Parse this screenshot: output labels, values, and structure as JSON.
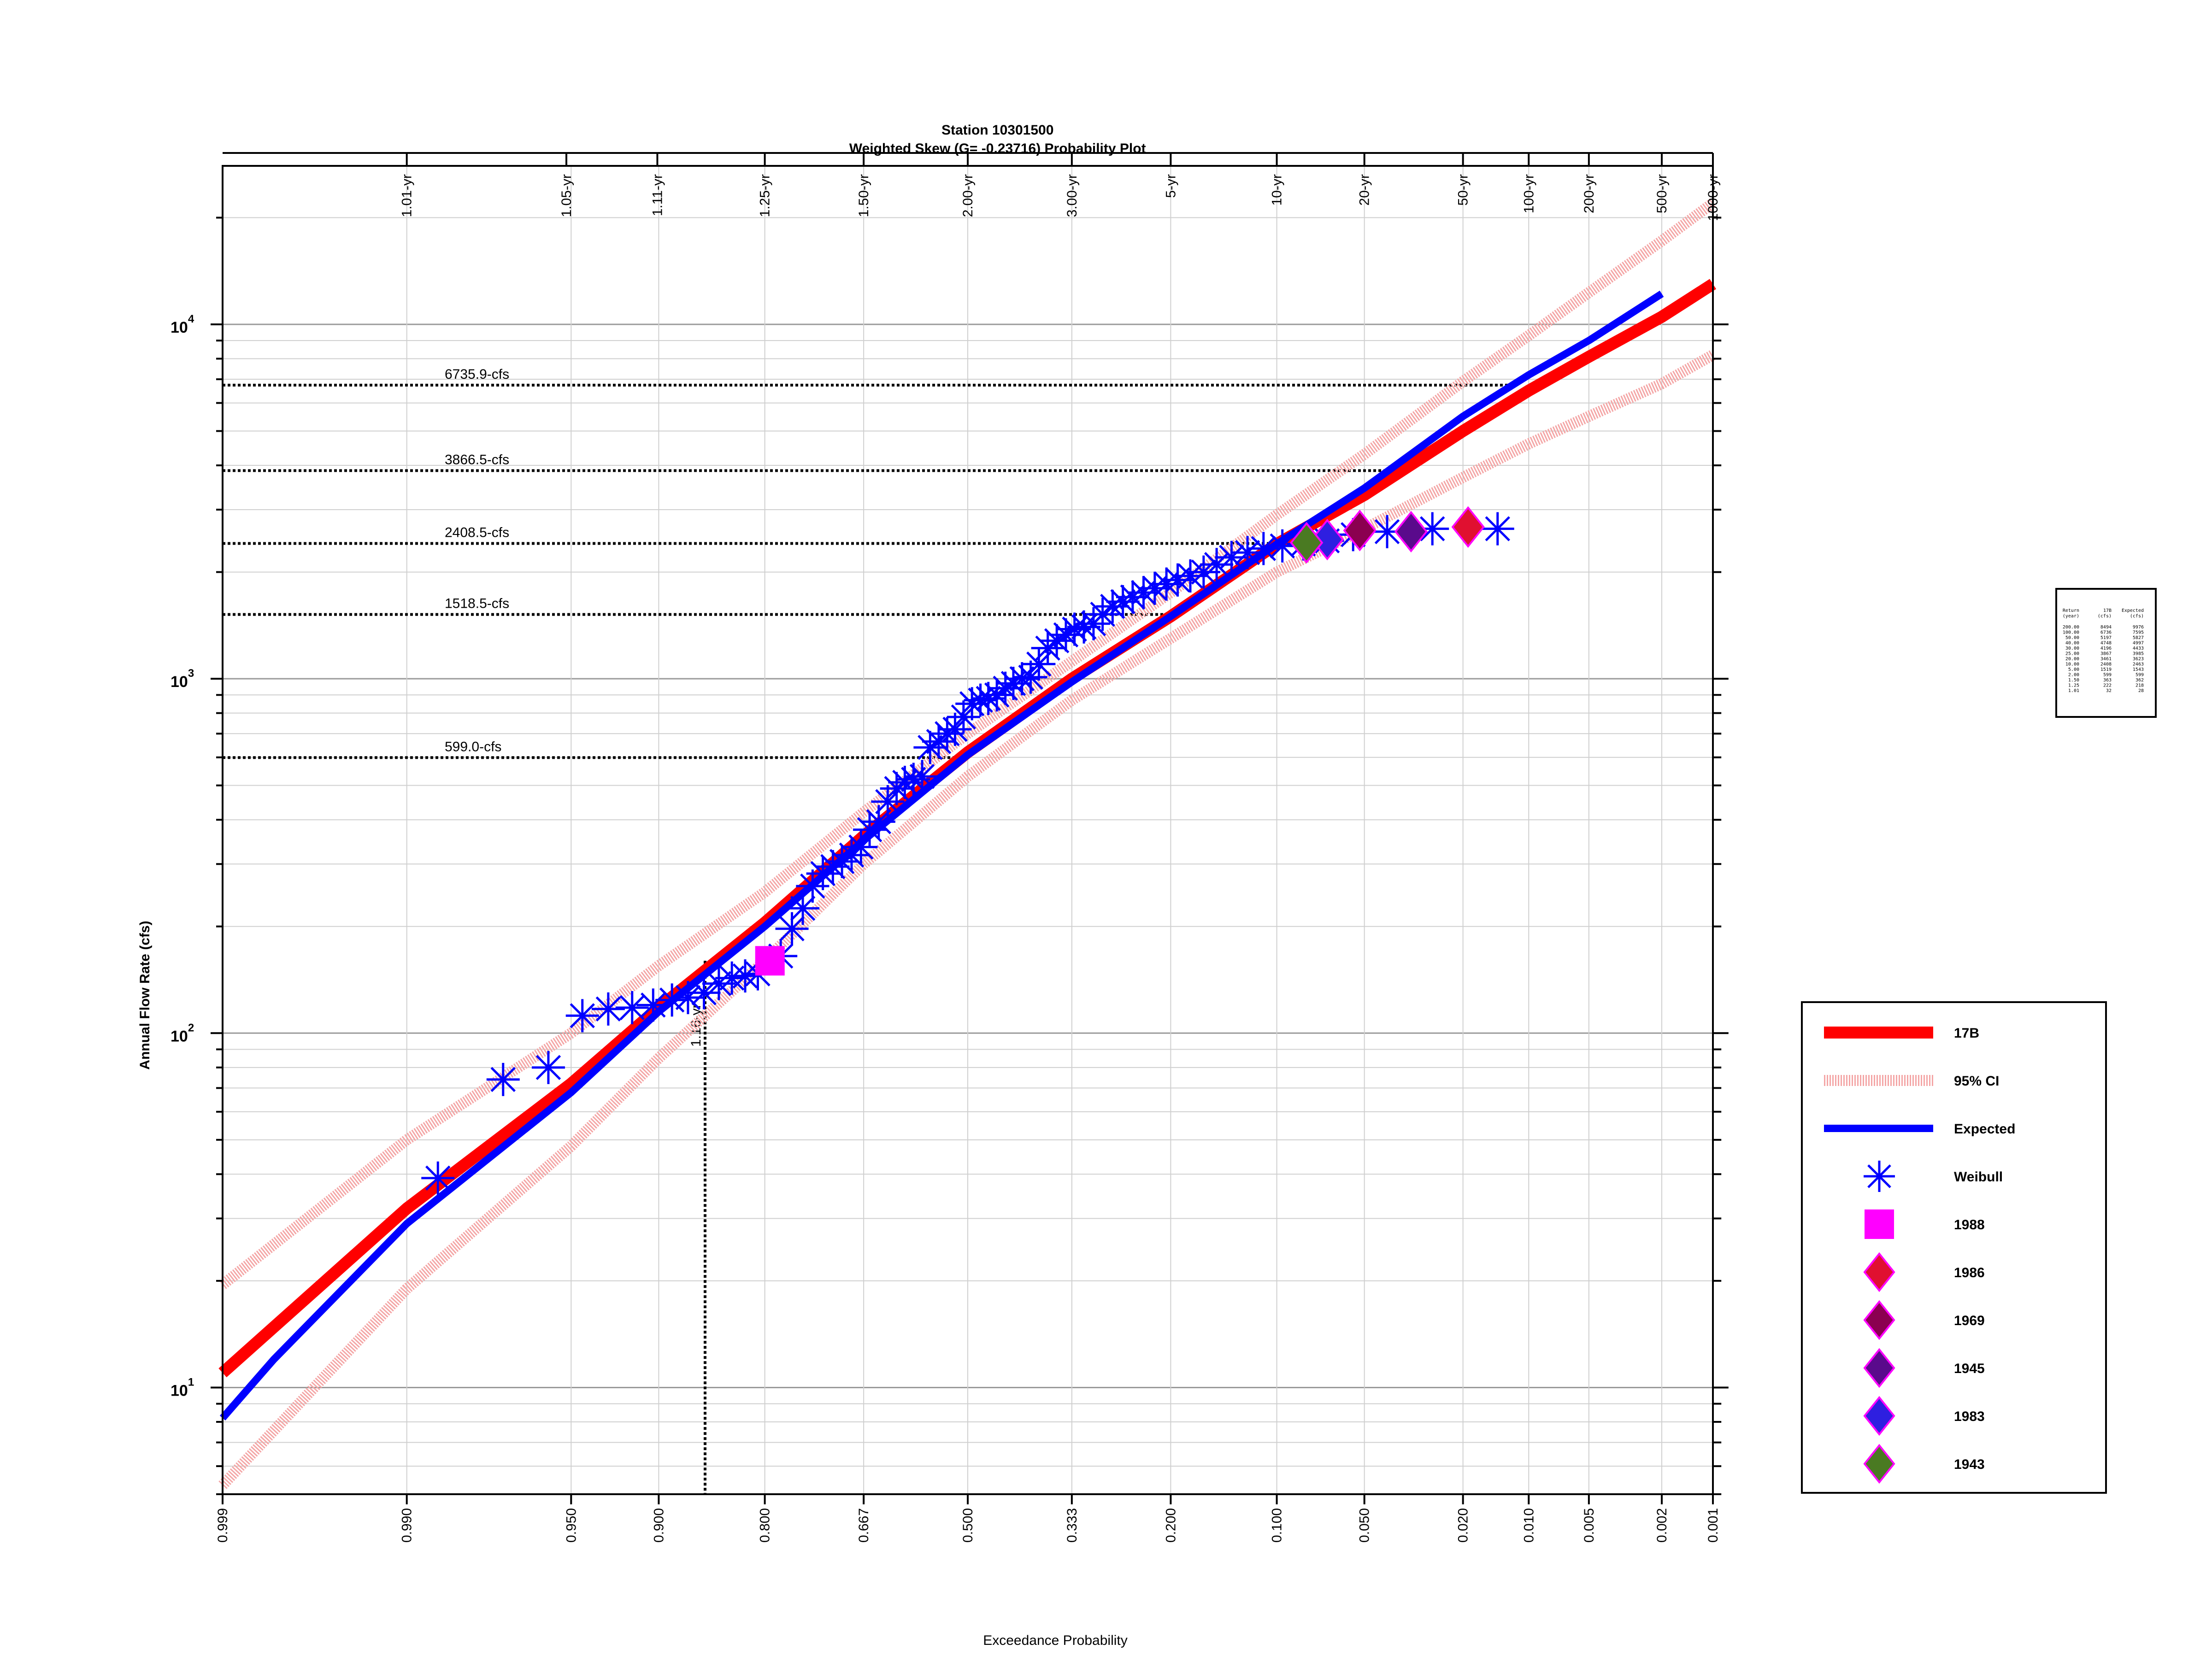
{
  "chart_data": {
    "type": "scatter",
    "title": "Station 10301500",
    "subtitle": "Weighted Skew (G= -0.23716) Probability Plot",
    "xlabel": "Exceedance Probability",
    "ylabel": "Annual Flow Rate (cfs)",
    "x_scale": "normal-probability",
    "y_scale": "log",
    "xlim": [
      0.999,
      0.001
    ],
    "ylim": [
      5,
      28000
    ],
    "grid": true,
    "legend_position": "right",
    "bottom_ticks": [
      {
        "p": 0.999,
        "label": "0.999"
      },
      {
        "p": 0.99,
        "label": "0.990"
      },
      {
        "p": 0.95,
        "label": "0.950"
      },
      {
        "p": 0.9,
        "label": "0.900"
      },
      {
        "p": 0.8,
        "label": "0.800"
      },
      {
        "p": 0.667,
        "label": "0.667"
      },
      {
        "p": 0.5,
        "label": "0.500"
      },
      {
        "p": 0.333,
        "label": "0.333"
      },
      {
        "p": 0.2,
        "label": "0.200"
      },
      {
        "p": 0.1,
        "label": "0.100"
      },
      {
        "p": 0.05,
        "label": "0.050"
      },
      {
        "p": 0.02,
        "label": "0.020"
      },
      {
        "p": 0.01,
        "label": "0.010"
      },
      {
        "p": 0.005,
        "label": "0.005"
      },
      {
        "p": 0.002,
        "label": "0.002"
      },
      {
        "p": 0.001,
        "label": "0.001"
      }
    ],
    "top_ticks": [
      {
        "p": 0.99,
        "label": "1.01-yr"
      },
      {
        "p": 0.952,
        "label": "1.05-yr"
      },
      {
        "p": 0.901,
        "label": "1.11-yr"
      },
      {
        "p": 0.8,
        "label": "1.25-yr"
      },
      {
        "p": 0.667,
        "label": "1.50-yr"
      },
      {
        "p": 0.5,
        "label": "2.00-yr"
      },
      {
        "p": 0.333,
        "label": "3.00-yr"
      },
      {
        "p": 0.2,
        "label": "5-yr"
      },
      {
        "p": 0.1,
        "label": "10-yr"
      },
      {
        "p": 0.05,
        "label": "20-yr"
      },
      {
        "p": 0.02,
        "label": "50-yr"
      },
      {
        "p": 0.01,
        "label": "100-yr"
      },
      {
        "p": 0.005,
        "label": "200-yr"
      },
      {
        "p": 0.002,
        "label": "500-yr"
      },
      {
        "p": 0.001,
        "label": "1000-yr"
      }
    ],
    "y_major_ticks": [
      {
        "value": 10,
        "base": "10",
        "exp": "1"
      },
      {
        "value": 100,
        "base": "10",
        "exp": "2"
      },
      {
        "value": 1000,
        "base": "10",
        "exp": "3"
      },
      {
        "value": 10000,
        "base": "10",
        "exp": "4"
      }
    ],
    "horizontal_refs": [
      {
        "value": 6735.9,
        "label": "6735.9-cfs",
        "p_end": 0.012
      },
      {
        "value": 3866.5,
        "label": "3866.5-cfs",
        "p_end": 0.04
      },
      {
        "value": 2408.5,
        "label": "2408.5-cfs",
        "p_end": 0.1
      },
      {
        "value": 1518.5,
        "label": "1518.5-cfs",
        "p_end": 0.2
      },
      {
        "value": 599.0,
        "label": "599.0-cfs",
        "p_end": 0.5
      }
    ],
    "vertical_ref": {
      "p": 0.862,
      "label": "1.16-yr",
      "y_top": 160
    },
    "series": [
      {
        "name": "17B",
        "color": "#ff0000",
        "style": "line",
        "points": [
          [
            0.999,
            11
          ],
          [
            0.99,
            32
          ],
          [
            0.95,
            72
          ],
          [
            0.9,
            118
          ],
          [
            0.8,
            205
          ],
          [
            0.667,
            360
          ],
          [
            0.5,
            620
          ],
          [
            0.333,
            1000
          ],
          [
            0.2,
            1500
          ],
          [
            0.1,
            2400
          ],
          [
            0.05,
            3300
          ],
          [
            0.02,
            5000
          ],
          [
            0.01,
            6500
          ],
          [
            0.005,
            8100
          ],
          [
            0.002,
            10500
          ],
          [
            0.001,
            13000
          ]
        ]
      },
      {
        "name": "95% CI",
        "color": "#f4a6a6",
        "style": "band",
        "upper": [
          [
            0.999,
            19.5
          ],
          [
            0.99,
            50
          ],
          [
            0.95,
            100
          ],
          [
            0.9,
            155
          ],
          [
            0.8,
            250
          ],
          [
            0.667,
            420
          ],
          [
            0.5,
            700
          ],
          [
            0.333,
            1120
          ],
          [
            0.2,
            1750
          ],
          [
            0.1,
            2900
          ],
          [
            0.05,
            4300
          ],
          [
            0.02,
            6900
          ],
          [
            0.01,
            9300
          ],
          [
            0.005,
            12300
          ],
          [
            0.002,
            17200
          ],
          [
            0.001,
            22000
          ]
        ],
        "lower": [
          [
            0.999,
            5.3
          ],
          [
            0.99,
            19
          ],
          [
            0.95,
            48
          ],
          [
            0.9,
            85
          ],
          [
            0.8,
            160
          ],
          [
            0.667,
            300
          ],
          [
            0.5,
            530
          ],
          [
            0.333,
            870
          ],
          [
            0.2,
            1300
          ],
          [
            0.1,
            2000
          ],
          [
            0.05,
            2650
          ],
          [
            0.02,
            3700
          ],
          [
            0.01,
            4600
          ],
          [
            0.005,
            5500
          ],
          [
            0.002,
            6800
          ],
          [
            0.001,
            8200
          ]
        ]
      },
      {
        "name": "Expected",
        "color": "#0000ff",
        "style": "line",
        "points": [
          [
            0.999,
            8.2
          ],
          [
            0.998,
            12
          ],
          [
            0.99,
            29
          ],
          [
            0.95,
            68
          ],
          [
            0.9,
            115
          ],
          [
            0.8,
            200
          ],
          [
            0.667,
            350
          ],
          [
            0.5,
            610
          ],
          [
            0.333,
            980
          ],
          [
            0.2,
            1500
          ],
          [
            0.1,
            2400
          ],
          [
            0.05,
            3450
          ],
          [
            0.02,
            5500
          ],
          [
            0.01,
            7200
          ],
          [
            0.005,
            9000
          ],
          [
            0.002,
            12200
          ]
        ]
      },
      {
        "name": "Weibull",
        "color": "#0000ff",
        "style": "asterisk",
        "points": [
          [
            0.986,
            39
          ],
          [
            0.973,
            74
          ],
          [
            0.959,
            80
          ],
          [
            0.945,
            112
          ],
          [
            0.932,
            117
          ],
          [
            0.918,
            118
          ],
          [
            0.904,
            120
          ],
          [
            0.89,
            124
          ],
          [
            0.877,
            126
          ],
          [
            0.863,
            130
          ],
          [
            0.849,
            138
          ],
          [
            0.836,
            143
          ],
          [
            0.822,
            145
          ],
          [
            0.808,
            147
          ],
          [
            0.781,
            165
          ],
          [
            0.767,
            197
          ],
          [
            0.753,
            225
          ],
          [
            0.74,
            260
          ],
          [
            0.726,
            282
          ],
          [
            0.712,
            295
          ],
          [
            0.699,
            305
          ],
          [
            0.685,
            318
          ],
          [
            0.671,
            335
          ],
          [
            0.658,
            375
          ],
          [
            0.644,
            395
          ],
          [
            0.63,
            450
          ],
          [
            0.616,
            490
          ],
          [
            0.603,
            510
          ],
          [
            0.589,
            520
          ],
          [
            0.575,
            530
          ],
          [
            0.562,
            640
          ],
          [
            0.548,
            665
          ],
          [
            0.534,
            700
          ],
          [
            0.521,
            720
          ],
          [
            0.507,
            780
          ],
          [
            0.493,
            850
          ],
          [
            0.479,
            870
          ],
          [
            0.466,
            880
          ],
          [
            0.452,
            900
          ],
          [
            0.438,
            940
          ],
          [
            0.425,
            970
          ],
          [
            0.411,
            1000
          ],
          [
            0.397,
            1010
          ],
          [
            0.384,
            1100
          ],
          [
            0.37,
            1220
          ],
          [
            0.356,
            1280
          ],
          [
            0.342,
            1330
          ],
          [
            0.329,
            1380
          ],
          [
            0.315,
            1400
          ],
          [
            0.301,
            1430
          ],
          [
            0.288,
            1520
          ],
          [
            0.274,
            1600
          ],
          [
            0.26,
            1650
          ],
          [
            0.247,
            1700
          ],
          [
            0.233,
            1750
          ],
          [
            0.219,
            1800
          ],
          [
            0.205,
            1850
          ],
          [
            0.192,
            1900
          ],
          [
            0.178,
            1950
          ],
          [
            0.164,
            2000
          ],
          [
            0.151,
            2100
          ],
          [
            0.137,
            2200
          ],
          [
            0.123,
            2270
          ],
          [
            0.11,
            2330
          ],
          [
            0.096,
            2370
          ],
          [
            0.082,
            2400
          ],
          [
            0.068,
            2450
          ],
          [
            0.055,
            2550
          ],
          [
            0.041,
            2600
          ],
          [
            0.027,
            2650
          ],
          [
            0.014,
            2650
          ]
        ]
      },
      {
        "name": "1988",
        "color": "#ff00ff",
        "style": "square",
        "points": [
          [
            0.794,
            160
          ]
        ]
      },
      {
        "name": "1986",
        "color": "#e01030",
        "style": "diamond",
        "points": [
          [
            0.019,
            2680
          ]
        ]
      },
      {
        "name": "1969",
        "color": "#8b0050",
        "style": "diamond",
        "points": [
          [
            0.052,
            2620
          ]
        ]
      },
      {
        "name": "1945",
        "color": "#5a0a8c",
        "style": "diamond",
        "points": [
          [
            0.033,
            2600
          ]
        ]
      },
      {
        "name": "1983",
        "color": "#2e1fe0",
        "style": "diamond",
        "points": [
          [
            0.068,
            2470
          ]
        ]
      },
      {
        "name": "1943",
        "color": "#4a7a22",
        "style": "diamond",
        "points": [
          [
            0.08,
            2420
          ]
        ]
      }
    ],
    "inset_table": {
      "columns": [
        "Return\n(year)",
        "17B\n(cfs)",
        "Expected\n(cfs)"
      ],
      "rows": [
        [
          "200.00",
          "8494",
          "9976"
        ],
        [
          "100.00",
          "6736",
          "7595"
        ],
        [
          "50.00",
          "5197",
          "5827"
        ],
        [
          "40.00",
          "4748",
          "4997"
        ],
        [
          "30.00",
          "4196",
          "4433"
        ],
        [
          "25.00",
          "3867",
          "3985"
        ],
        [
          "20.00",
          "3461",
          "3623"
        ],
        [
          "10.00",
          "2408",
          "2463"
        ],
        [
          "5.00",
          "1519",
          "1543"
        ],
        [
          "2.00",
          "599",
          "599"
        ],
        [
          "1.50",
          "363",
          "362"
        ],
        [
          "1.25",
          "222",
          "218"
        ],
        [
          "1.01",
          "32",
          "28"
        ]
      ]
    }
  }
}
